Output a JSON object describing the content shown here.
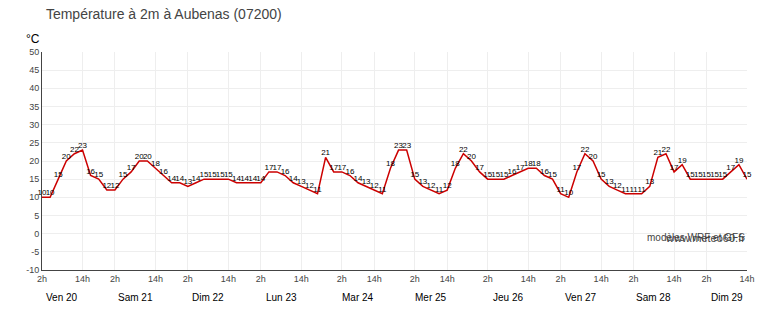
{
  "chart_data": {
    "type": "line",
    "title": "Température à 2m à Aubenas (07200)",
    "ylabel": "°C",
    "categories": [
      "2h",
      null,
      null,
      null,
      null,
      "14h",
      null,
      null,
      null,
      "2h",
      null,
      null,
      null,
      null,
      "14h",
      null,
      null,
      null,
      "2h",
      null,
      null,
      null,
      null,
      "14h",
      null,
      null,
      null,
      "2h",
      null,
      null,
      null,
      null,
      "14h",
      null,
      null,
      null,
      null,
      "2h",
      null,
      null,
      null,
      "14h",
      null,
      null,
      null,
      null,
      "2h",
      null,
      null,
      null,
      "14h",
      null,
      null,
      null,
      null,
      "2h",
      null,
      null,
      null,
      null,
      "14h",
      null,
      null,
      null,
      "2h",
      null,
      null,
      null,
      null,
      "14h",
      null,
      null,
      null,
      "2h",
      null,
      null,
      null,
      null,
      "14h",
      null,
      null,
      null,
      "2h",
      null,
      null,
      null,
      null,
      "14h"
    ],
    "values": [
      10,
      10,
      15,
      20,
      22,
      23,
      16,
      15,
      12,
      12,
      15,
      17,
      20,
      20,
      18,
      16,
      14,
      14,
      13,
      14,
      15,
      15,
      15,
      15,
      14,
      14,
      14,
      14,
      17,
      17,
      16,
      14,
      13,
      12,
      11,
      21,
      17,
      17,
      16,
      14,
      13,
      12,
      11,
      18,
      23,
      23,
      15,
      13,
      12,
      11,
      12,
      18,
      22,
      20,
      17,
      15,
      15,
      15,
      16,
      17,
      18,
      18,
      16,
      15,
      11,
      10,
      17,
      22,
      20,
      15,
      13,
      12,
      11,
      11,
      11,
      13,
      21,
      22,
      17,
      19,
      15,
      15,
      15,
      15,
      15,
      17,
      19,
      15
    ],
    "color": "#cc0000",
    "ylim": [
      -10,
      50
    ],
    "yticks": [
      -10,
      -5,
      0,
      5,
      10,
      15,
      20,
      25,
      30,
      35,
      40,
      45,
      50
    ],
    "grid": true,
    "data_labels": true,
    "groups": [
      "Ven 20",
      "Sam 21",
      "Dim 22",
      "Lun 23",
      "Mar 24",
      "Mer 25",
      "Jeu 26",
      "Ven 27",
      "Sam 28",
      "Dim 29"
    ],
    "annotations": [
      "www.meteo60.fr",
      "modèles WRF et GFS"
    ]
  }
}
